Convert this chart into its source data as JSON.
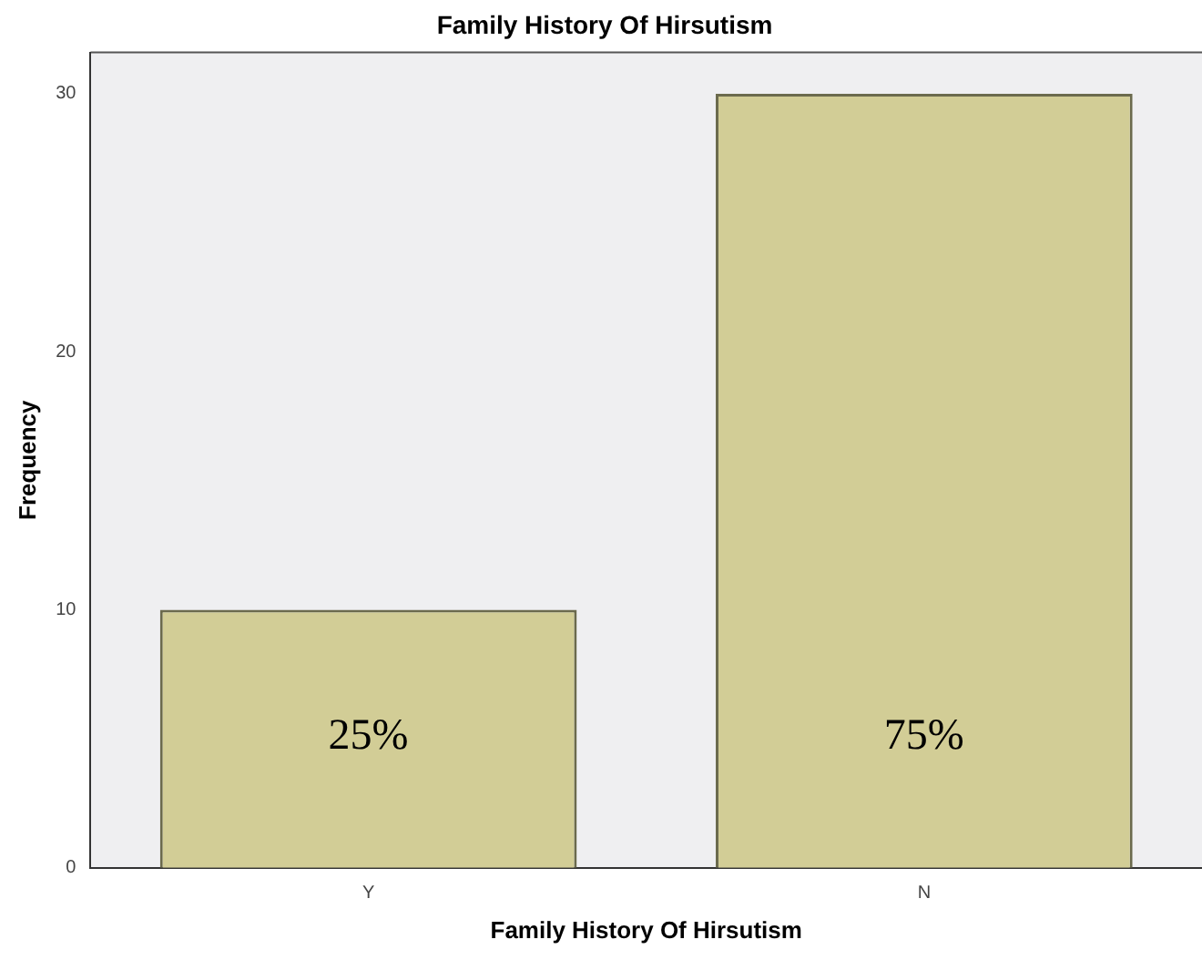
{
  "chart_data": {
    "type": "bar",
    "title": "Family History Of Hirsutism",
    "xlabel": "Family History Of Hirsutism",
    "ylabel": "Frequency",
    "categories": [
      "Y",
      "N"
    ],
    "values": [
      10,
      30
    ],
    "color": "#d2cd96",
    "annotations": [
      "25%",
      "75%"
    ],
    "ylim": [
      0,
      31.6
    ],
    "yticks": [
      0,
      10,
      20,
      30
    ],
    "grid": false,
    "legend": false
  }
}
